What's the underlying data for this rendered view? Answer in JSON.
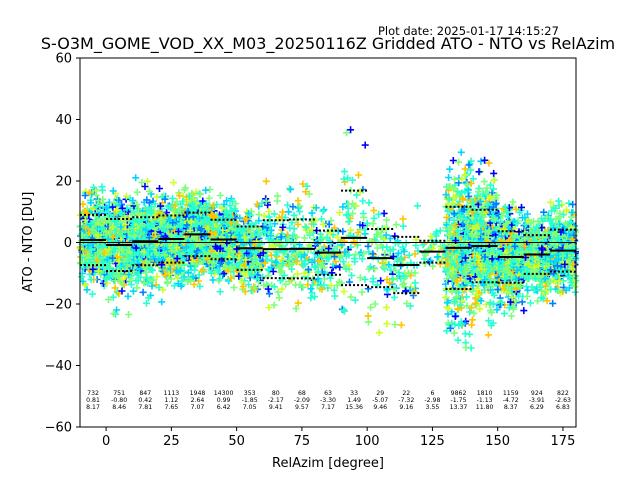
{
  "header": {
    "plot_date": "Plot date: 2025-01-17 14:15:27",
    "title": "S-O3M_GOME_VOD_XX_M03_20250116Z Gridded ATO - NTO vs RelAzim"
  },
  "chart_data": {
    "type": "scatter",
    "title": "S-O3M_GOME_VOD_XX_M03_20250116Z Gridded ATO - NTO vs RelAzim",
    "xlabel": "RelAzim [degree]",
    "ylabel": "ATO - NTO [DU]",
    "xlim": [
      -10,
      180
    ],
    "ylim": [
      -60,
      60
    ],
    "xticks": [
      0,
      25,
      50,
      75,
      100,
      125,
      150,
      175
    ],
    "xtick_labels": [
      "0",
      "25",
      "50",
      "75",
      "100",
      "125",
      "150",
      "175"
    ],
    "yticks": [
      -60,
      -40,
      -20,
      0,
      20,
      40,
      60
    ],
    "ytick_labels": [
      "−60",
      "−40",
      "−20",
      "0",
      "20",
      "40",
      "60"
    ],
    "grid": false,
    "marker": "plus",
    "zero_line": 0,
    "bins": [
      {
        "start": -10,
        "end": 0,
        "mean": 0.81,
        "std": 8.17,
        "count": "732",
        "mean_label": "0.81",
        "std_label": "8.17"
      },
      {
        "start": 0,
        "end": 10,
        "mean": -0.8,
        "std": 8.46,
        "count": "751",
        "mean_label": "-0.80",
        "std_label": "8.46"
      },
      {
        "start": 10,
        "end": 20,
        "mean": 0.42,
        "std": 7.81,
        "count": "847",
        "mean_label": "0.42",
        "std_label": "7.81"
      },
      {
        "start": 20,
        "end": 30,
        "mean": 1.12,
        "std": 7.65,
        "count": "1113",
        "mean_label": "1.12",
        "std_label": "7.65"
      },
      {
        "start": 30,
        "end": 40,
        "mean": 2.64,
        "std": 7.07,
        "count": "1948",
        "mean_label": "2.64",
        "std_label": "7.07"
      },
      {
        "start": 40,
        "end": 50,
        "mean": 0.99,
        "std": 6.42,
        "count": "14300",
        "mean_label": "0.99",
        "std_label": "6.42"
      },
      {
        "start": 50,
        "end": 60,
        "mean": -1.85,
        "std": 7.05,
        "count": "353",
        "mean_label": "-1.85",
        "std_label": "7.05"
      },
      {
        "start": 60,
        "end": 70,
        "mean": -2.17,
        "std": 9.41,
        "count": "80",
        "mean_label": "-2.17",
        "std_label": "9.41"
      },
      {
        "start": 70,
        "end": 80,
        "mean": -2.09,
        "std": 9.57,
        "count": "68",
        "mean_label": "-2.09",
        "std_label": "9.57"
      },
      {
        "start": 80,
        "end": 90,
        "mean": -3.3,
        "std": 7.17,
        "count": "63",
        "mean_label": "-3.30",
        "std_label": "7.17"
      },
      {
        "start": 90,
        "end": 100,
        "mean": 1.49,
        "std": 15.36,
        "count": "33",
        "mean_label": "1.49",
        "std_label": "15.36"
      },
      {
        "start": 100,
        "end": 110,
        "mean": -5.07,
        "std": 9.46,
        "count": "29",
        "mean_label": "-5.07",
        "std_label": "9.46"
      },
      {
        "start": 110,
        "end": 120,
        "mean": -7.32,
        "std": 9.16,
        "count": "22",
        "mean_label": "-7.32",
        "std_label": "9.16"
      },
      {
        "start": 120,
        "end": 130,
        "mean": -2.98,
        "std": 3.55,
        "count": "6",
        "mean_label": "-2.98",
        "std_label": "3.55"
      },
      {
        "start": 130,
        "end": 140,
        "mean": -1.75,
        "std": 13.37,
        "count": "9862",
        "mean_label": "-1.75",
        "std_label": "13.37"
      },
      {
        "start": 140,
        "end": 150,
        "mean": -1.13,
        "std": 11.8,
        "count": "1810",
        "mean_label": "-1.13",
        "std_label": "11.80"
      },
      {
        "start": 150,
        "end": 160,
        "mean": -4.72,
        "std": 8.37,
        "count": "1159",
        "mean_label": "-4.72",
        "std_label": "8.37"
      },
      {
        "start": 160,
        "end": 170,
        "mean": -3.91,
        "std": 6.29,
        "count": "924",
        "mean_label": "-3.91",
        "std_label": "6.29"
      },
      {
        "start": 170,
        "end": 180,
        "mean": -2.63,
        "std": 6.83,
        "count": "822",
        "mean_label": "-2.63",
        "std_label": "6.83"
      }
    ],
    "point_colors": [
      "#0000ff",
      "#007fff",
      "#00d4ff",
      "#29ffce",
      "#7dff7a",
      "#ceff29",
      "#ffc400"
    ]
  }
}
